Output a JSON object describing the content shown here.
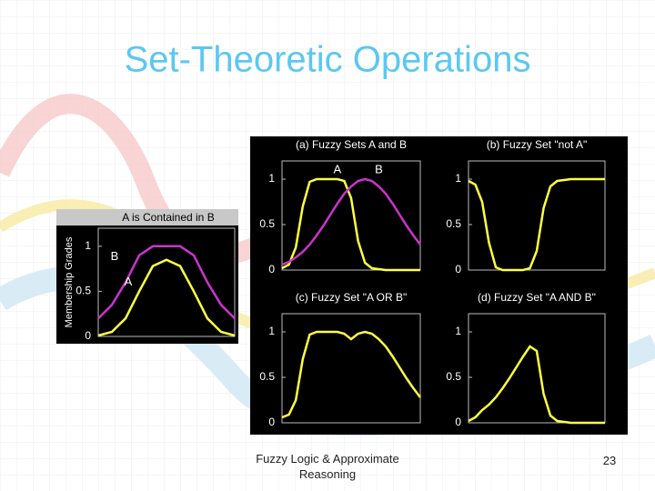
{
  "title": "Set-Theoretic Operations",
  "footer": "Fuzzy Logic & Approximate Reasoning",
  "page_number": 23,
  "chart_data": [
    {
      "type": "line",
      "title": "A is Contained in B",
      "ylabel": "Membership Grades",
      "x": [
        0,
        10,
        20,
        30,
        40,
        50,
        60,
        70,
        80,
        90,
        100
      ],
      "xlim": [
        0,
        100
      ],
      "ylim": [
        0,
        1.2
      ],
      "yticks": [
        0,
        0.5,
        1
      ],
      "series": [
        {
          "name": "B",
          "color": "#cc33cc",
          "values": [
            0.2,
            0.35,
            0.6,
            0.9,
            1,
            1,
            1,
            0.9,
            0.6,
            0.35,
            0.2
          ]
        },
        {
          "name": "A",
          "color": "#ffff40",
          "values": [
            0.01,
            0.05,
            0.2,
            0.5,
            0.78,
            0.85,
            0.78,
            0.5,
            0.2,
            0.05,
            0.01
          ]
        }
      ]
    },
    {
      "type": "line",
      "title": "(a) Fuzzy Sets A and B",
      "x": [
        0,
        5,
        10,
        15,
        20,
        25,
        30,
        35,
        40,
        45,
        50,
        55,
        60,
        65,
        70,
        75,
        80,
        85,
        90,
        95,
        100
      ],
      "xlim": [
        0,
        100
      ],
      "ylim": [
        0,
        1.2
      ],
      "yticks": [
        0,
        0.5,
        1
      ],
      "series": [
        {
          "name": "A",
          "color": "#ffff40",
          "values": [
            0.02,
            0.06,
            0.25,
            0.7,
            0.97,
            1,
            1,
            1,
            1,
            0.98,
            0.79,
            0.32,
            0.08,
            0.02,
            0.01,
            0,
            0,
            0,
            0,
            0,
            0
          ]
        },
        {
          "name": "B",
          "color": "#cc33cc",
          "values": [
            0.06,
            0.09,
            0.14,
            0.2,
            0.28,
            0.38,
            0.49,
            0.61,
            0.73,
            0.84,
            0.92,
            0.98,
            1,
            0.98,
            0.92,
            0.84,
            0.73,
            0.61,
            0.49,
            0.38,
            0.28
          ]
        }
      ]
    },
    {
      "type": "line",
      "title": "(b) Fuzzy Set \"not A\"",
      "x": [
        0,
        5,
        10,
        15,
        20,
        25,
        30,
        35,
        40,
        45,
        50,
        55,
        60,
        65,
        70,
        75,
        80,
        85,
        90,
        95,
        100
      ],
      "xlim": [
        0,
        100
      ],
      "ylim": [
        0,
        1.2
      ],
      "yticks": [
        0,
        0.5,
        1
      ],
      "series": [
        {
          "color": "#ffff40",
          "values": [
            0.98,
            0.94,
            0.75,
            0.3,
            0.03,
            0,
            0,
            0,
            0,
            0.02,
            0.21,
            0.68,
            0.92,
            0.98,
            0.99,
            1,
            1,
            1,
            1,
            1,
            1
          ]
        }
      ]
    },
    {
      "type": "line",
      "title": "(c) Fuzzy Set \"A OR B\"",
      "x": [
        0,
        5,
        10,
        15,
        20,
        25,
        30,
        35,
        40,
        45,
        50,
        55,
        60,
        65,
        70,
        75,
        80,
        85,
        90,
        95,
        100
      ],
      "xlim": [
        0,
        100
      ],
      "ylim": [
        0,
        1.2
      ],
      "yticks": [
        0,
        0.5,
        1
      ],
      "series": [
        {
          "color": "#ffff40",
          "values": [
            0.06,
            0.09,
            0.25,
            0.7,
            0.97,
            1,
            1,
            1,
            1,
            0.98,
            0.92,
            0.98,
            1,
            0.98,
            0.92,
            0.84,
            0.73,
            0.61,
            0.49,
            0.38,
            0.28
          ]
        }
      ]
    },
    {
      "type": "line",
      "title": "(d) Fuzzy Set \"A AND B\"",
      "x": [
        0,
        5,
        10,
        15,
        20,
        25,
        30,
        35,
        40,
        45,
        50,
        55,
        60,
        65,
        70,
        75,
        80,
        85,
        90,
        95,
        100
      ],
      "xlim": [
        0,
        100
      ],
      "ylim": [
        0,
        1.2
      ],
      "yticks": [
        0,
        0.5,
        1
      ],
      "series": [
        {
          "color": "#ffff40",
          "values": [
            0.02,
            0.06,
            0.14,
            0.2,
            0.28,
            0.38,
            0.49,
            0.61,
            0.73,
            0.84,
            0.79,
            0.32,
            0.08,
            0.02,
            0.01,
            0,
            0,
            0,
            0,
            0,
            0
          ]
        }
      ]
    }
  ]
}
